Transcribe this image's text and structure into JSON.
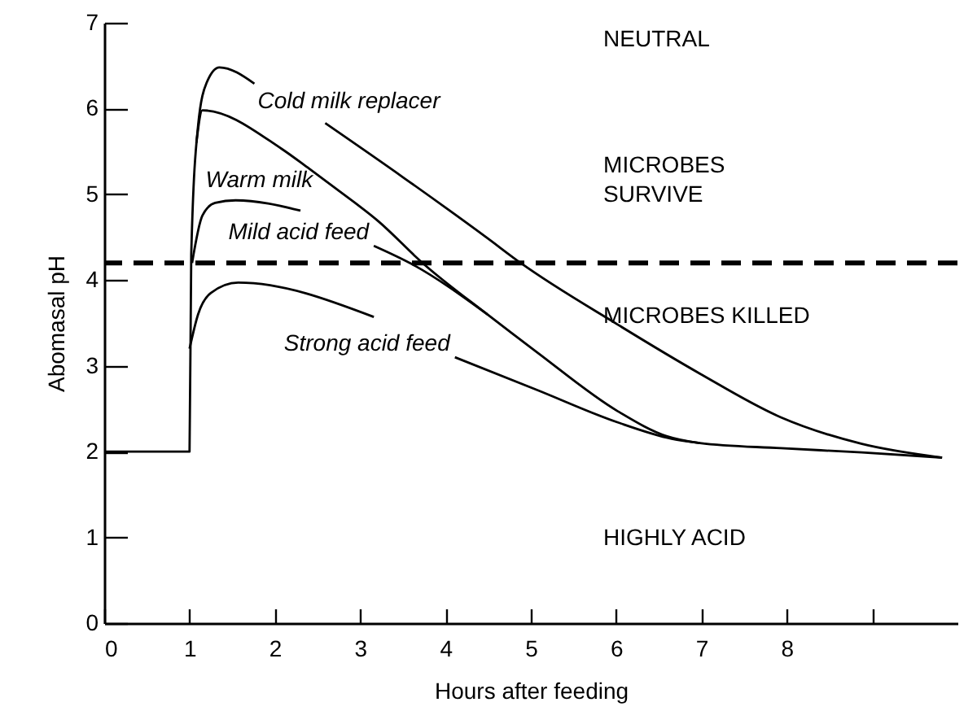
{
  "chart_data": {
    "type": "line",
    "xlabel": "Hours after feeding",
    "ylabel": "Abomasal pH",
    "xlim": [
      0,
      10
    ],
    "ylim": [
      0,
      7
    ],
    "xticks": [
      0,
      1,
      2,
      3,
      4,
      5,
      6,
      7,
      8,
      {
        "value": 9,
        "label": null
      }
    ],
    "yticks": [
      0,
      1,
      2,
      3,
      4,
      5,
      6,
      7
    ],
    "series": [
      {
        "name": "Cold milk replacer",
        "color": "#000000",
        "x": [
          0,
          1,
          1,
          1.02,
          1.1,
          1.2,
          1.35,
          1.76,
          2.2,
          2.59,
          3.5,
          4.49,
          4.88,
          6.02,
          6.98,
          7.93,
          8.88,
          9.82
        ],
        "values": [
          2,
          2,
          2,
          4.3,
          5.8,
          6.3,
          6.48,
          6.29,
          null,
          5.83,
          5.2,
          4.49,
          4.2,
          3.48,
          2.91,
          2.4,
          2.09,
          1.93
        ]
      },
      {
        "name": "Warm milk",
        "color": "#000000",
        "x": [
          1.08,
          1.15,
          2.08,
          2.4,
          2.71,
          3.22,
          3.73,
          4.49,
          5.07,
          6.02,
          6.59,
          6.98,
          7.93,
          8.88,
          9.82
        ],
        "values": [
          5.6,
          5.98,
          5.53,
          5.3,
          5.07,
          4.68,
          4.2,
          3.6,
          3.16,
          2.47,
          2.18,
          2.1,
          2.04,
          1.99,
          1.93
        ]
      },
      {
        "name": "Mild acid feed",
        "color": "#000000",
        "x": [
          1.03,
          1.15,
          1.3,
          1.54,
          2.3,
          2.7,
          3.16,
          3.6,
          4.49
        ],
        "values": [
          4.2,
          4.75,
          4.9,
          4.93,
          4.81,
          null,
          4.4,
          4.19,
          3.6
        ]
      },
      {
        "name": "Strong acid feed",
        "color": "#000000",
        "x": [
          1,
          1.1,
          1.25,
          1.57,
          3.16,
          3.6,
          4.11,
          5.07,
          6.02,
          6.65,
          6.98
        ],
        "values": [
          3.2,
          3.6,
          3.85,
          3.97,
          3.57,
          null,
          3.1,
          2.72,
          2.34,
          2.15,
          2.1
        ]
      }
    ],
    "ref_lines": [
      {
        "axis": "y",
        "value": 4.2,
        "line_style": "dashed",
        "color": "#000000"
      }
    ],
    "annotations": [
      "NEUTRAL",
      "MICROBES\nSURVIVE",
      "MICROBES KILLED",
      "HIGHLY ACID"
    ]
  }
}
